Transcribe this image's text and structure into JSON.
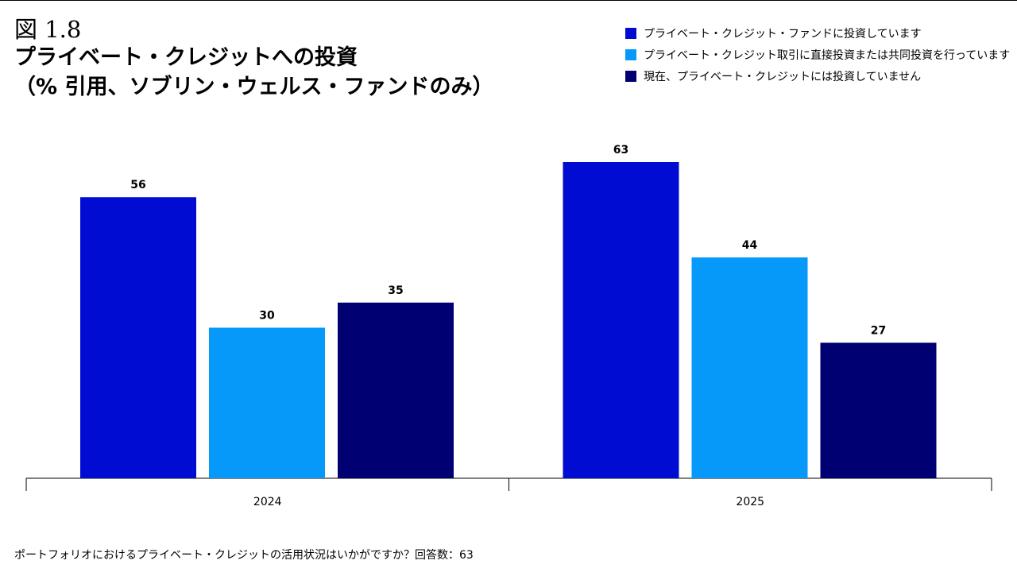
{
  "figure_label": "図 1.8",
  "title_line1": "プライベート・クレジットへの投資",
  "title_line2": "（% 引用、ソブリン・ウェルス・ファンドのみ）",
  "footnote": "ポートフォリオにおけるプライベート・クレジットの活用状況はいかがですか？回答数：63",
  "colors": {
    "series1": "#000CD2",
    "series2": "#0699F9",
    "series3": "#000073",
    "axis": "#000000",
    "label": "#000000"
  },
  "chart_data": {
    "type": "bar",
    "title": "プライベート・クレジットへの投資（% 引用、ソブリン・ウェルス・ファンドのみ）",
    "categories": [
      "2024",
      "2025"
    ],
    "series": [
      {
        "name": "プライベート・クレジット・ファンドに投資しています",
        "values": [
          56,
          63
        ]
      },
      {
        "name": "プライベート・クレジット取引に直接投資または共同投資を行っています",
        "values": [
          30,
          44
        ]
      },
      {
        "name": "現在、プライベート・クレジットには投資していません",
        "values": [
          35,
          27
        ]
      }
    ],
    "xlabel": "",
    "ylabel": "",
    "ylim": [
      0,
      65
    ],
    "grid": false,
    "legend": "top-right"
  }
}
